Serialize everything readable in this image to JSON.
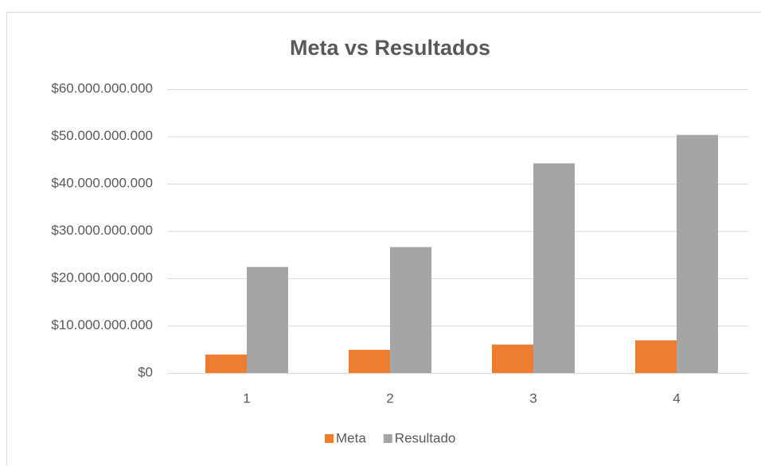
{
  "chart_data": {
    "type": "bar",
    "title": "Meta vs Resultados",
    "categories": [
      "1",
      "2",
      "3",
      "4"
    ],
    "series": [
      {
        "name": "Meta",
        "color": "#ed7d31",
        "values": [
          3900000000,
          4900000000,
          6000000000,
          6900000000
        ]
      },
      {
        "name": "Resultado",
        "color": "#a5a5a5",
        "values": [
          22400000000,
          26600000000,
          44300000000,
          50300000000
        ]
      }
    ],
    "ylim": [
      0,
      60000000000
    ],
    "yticks": [
      {
        "value": 0,
        "label": "$0"
      },
      {
        "value": 10000000000,
        "label": "$10.000.000.000"
      },
      {
        "value": 20000000000,
        "label": "$20.000.000.000"
      },
      {
        "value": 30000000000,
        "label": "$30.000.000.000"
      },
      {
        "value": 40000000000,
        "label": "$40.000.000.000"
      },
      {
        "value": 50000000000,
        "label": "$50.000.000.000"
      },
      {
        "value": 60000000000,
        "label": "$60.000.000.000"
      }
    ],
    "grid": true,
    "legend": "bottom"
  }
}
